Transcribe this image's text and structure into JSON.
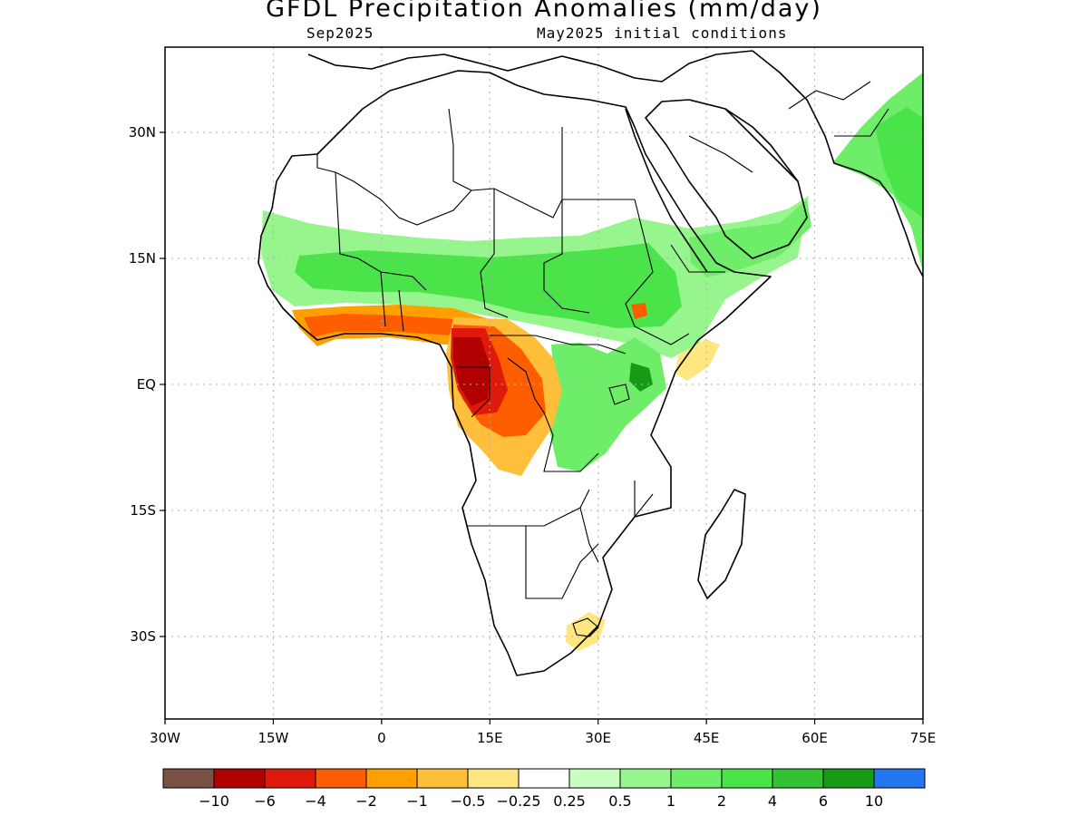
{
  "header": {
    "title": "GFDL Precipitation Anomalies (mm/day)",
    "valid_month": "Sep2025",
    "init_label": "May2025 initial conditions"
  },
  "map": {
    "lat_labels": [
      "30N",
      "15N",
      "EQ",
      "15S",
      "30S"
    ],
    "lon_labels": [
      "30W",
      "15W",
      "0",
      "15E",
      "30E",
      "45E",
      "60E",
      "75E"
    ],
    "grid": true
  },
  "colorbar": {
    "colors": [
      "#7a5245",
      "#b10000",
      "#e01a0a",
      "#ff5e00",
      "#ff9f00",
      "#ffbf3a",
      "#ffe681",
      "#ffffff",
      "#c7ffc0",
      "#96f58c",
      "#6eed68",
      "#4ae34a",
      "#33c233",
      "#179b17",
      "#2376f0"
    ],
    "labels": [
      "−10",
      "−6",
      "−4",
      "−2",
      "−1",
      "−0.5",
      "−0.25",
      "0.25",
      "0.5",
      "1",
      "2",
      "4",
      "6",
      "10"
    ]
  }
}
